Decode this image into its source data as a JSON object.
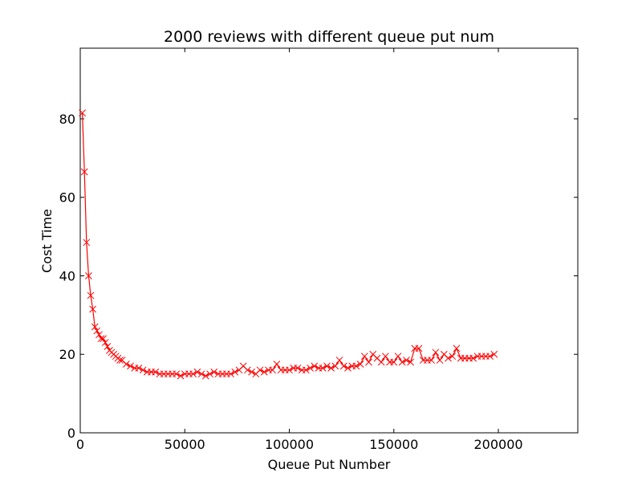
{
  "chart_data": {
    "type": "line",
    "title": "2000 reviews with different queue put num",
    "x_label": "Queue Put Number",
    "y_label": "Cost Time",
    "x": [
      1000,
      2000,
      3000,
      4000,
      5000,
      6000,
      7000,
      8000,
      9000,
      10000,
      11000,
      12000,
      13000,
      14000,
      15000,
      16000,
      17000,
      18000,
      19000,
      20000,
      22000,
      24000,
      26000,
      28000,
      30000,
      32000,
      34000,
      36000,
      38000,
      40000,
      42000,
      44000,
      46000,
      48000,
      50000,
      52000,
      54000,
      56000,
      58000,
      60000,
      62000,
      64000,
      66000,
      68000,
      70000,
      72000,
      74000,
      76000,
      78000,
      80000,
      82000,
      84000,
      86000,
      88000,
      90000,
      92000,
      94000,
      96000,
      98000,
      100000,
      102000,
      104000,
      106000,
      108000,
      110000,
      112000,
      114000,
      116000,
      118000,
      120000,
      122000,
      124000,
      126000,
      128000,
      130000,
      132000,
      134000,
      136000,
      138000,
      140000,
      142000,
      144000,
      146000,
      148000,
      150000,
      152000,
      154000,
      156000,
      158000,
      160000,
      162000,
      164000,
      166000,
      168000,
      170000,
      172000,
      174000,
      176000,
      178000,
      180000,
      182000,
      184000,
      186000,
      188000,
      190000,
      192000,
      194000,
      196000,
      198000
    ],
    "series": [
      {
        "color": "#ff0000",
        "marker": "x",
        "values": [
          81.5,
          66.5,
          48.5,
          40,
          35,
          31.5,
          27,
          26,
          25,
          24,
          24,
          23,
          22,
          21,
          20.5,
          20,
          19.5,
          19,
          18.5,
          18.5,
          17.5,
          17,
          16.5,
          16.5,
          16,
          15.5,
          15.5,
          15.5,
          15,
          15,
          15,
          15,
          15,
          14.5,
          15,
          15,
          15,
          15.5,
          15,
          14.5,
          15,
          15.5,
          15,
          15,
          15,
          15,
          15.5,
          16,
          17,
          16,
          15.5,
          15,
          16,
          15.5,
          16,
          16,
          17.5,
          16,
          16,
          16,
          16.5,
          16.5,
          16,
          16,
          16.5,
          17,
          16.5,
          16.5,
          17,
          16.5,
          17,
          18.5,
          17,
          16.5,
          17,
          17,
          17.5,
          19.5,
          18,
          20,
          19,
          18,
          19.5,
          18,
          18,
          19.5,
          18,
          18.5,
          18,
          21.5,
          21.5,
          18.5,
          18.5,
          18.5,
          20.5,
          18.5,
          20,
          19,
          19.5,
          21.5,
          19,
          19,
          19,
          19,
          19.5,
          19.5,
          19.5,
          19.5,
          20
        ]
      }
    ],
    "xlim": [
      0,
      238000
    ],
    "ylim": [
      0,
      98
    ],
    "xticks": [
      0,
      50000,
      100000,
      150000,
      200000
    ],
    "yticks": [
      0,
      20,
      40,
      60,
      80
    ]
  }
}
